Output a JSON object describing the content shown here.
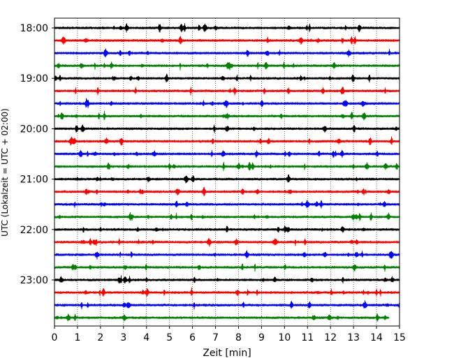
{
  "chart_data": {
    "type": "line",
    "title": "",
    "xlabel": "Zeit  [min]",
    "ylabel": "UTC (Lokalzeit = UTC + 02:00)",
    "xlim": [
      0,
      15
    ],
    "x_ticks": [
      0,
      1,
      2,
      3,
      4,
      5,
      6,
      7,
      8,
      9,
      10,
      11,
      12,
      13,
      14,
      15
    ],
    "x_tick_labels": [
      "0",
      "1",
      "2",
      "3",
      "4",
      "5",
      "6",
      "7",
      "8",
      "9",
      "10",
      "11",
      "12",
      "13",
      "14",
      "15"
    ],
    "y_tick_labels": [
      "18:00",
      "19:00",
      "20:00",
      "21:00",
      "22:00",
      "23:00"
    ],
    "trace_start_times": [
      "18:00",
      "18:15",
      "18:30",
      "18:45",
      "19:00",
      "19:15",
      "19:30",
      "19:45",
      "20:00",
      "20:15",
      "20:30",
      "20:45",
      "21:00",
      "21:15",
      "21:30",
      "21:45",
      "22:00",
      "22:15",
      "22:30",
      "22:45",
      "23:00",
      "23:15",
      "23:30",
      "23:45"
    ],
    "trace_colors": [
      "#000000",
      "#ff0000",
      "#0000ff",
      "#008000"
    ],
    "last_trace_end_min": 14.55,
    "grid": "vertical dotted"
  }
}
